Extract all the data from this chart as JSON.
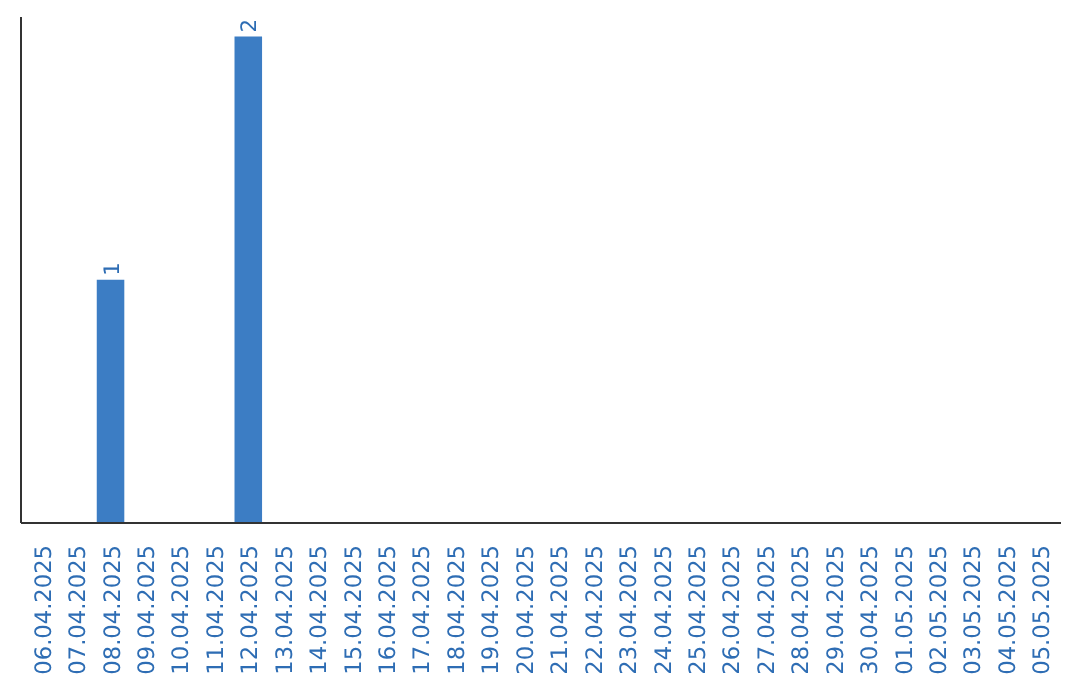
{
  "chart_data": {
    "type": "bar",
    "categories": [
      "06.04.2025",
      "07.04.2025",
      "08.04.2025",
      "09.04.2025",
      "10.04.2025",
      "11.04.2025",
      "12.04.2025",
      "13.04.2025",
      "14.04.2025",
      "15.04.2025",
      "16.04.2025",
      "17.04.2025",
      "18.04.2025",
      "19.04.2025",
      "20.04.2025",
      "21.04.2025",
      "22.04.2025",
      "23.04.2025",
      "24.04.2025",
      "25.04.2025",
      "26.04.2025",
      "27.04.2025",
      "28.04.2025",
      "29.04.2025",
      "30.04.2025",
      "01.05.2025",
      "02.05.2025",
      "03.05.2025",
      "04.05.2025",
      "05.05.2025"
    ],
    "values": [
      0,
      0,
      1,
      0,
      0,
      0,
      2,
      0,
      0,
      0,
      0,
      0,
      0,
      0,
      0,
      0,
      0,
      0,
      0,
      0,
      0,
      0,
      0,
      0,
      0,
      0,
      0,
      0,
      0,
      0
    ],
    "value_labels": [
      null,
      null,
      "1",
      null,
      null,
      null,
      "2",
      null,
      null,
      null,
      null,
      null,
      null,
      null,
      null,
      null,
      null,
      null,
      null,
      null,
      null,
      null,
      null,
      null,
      null,
      null,
      null,
      null,
      null,
      null
    ],
    "color": "#3c7dc4",
    "grid": false
  }
}
